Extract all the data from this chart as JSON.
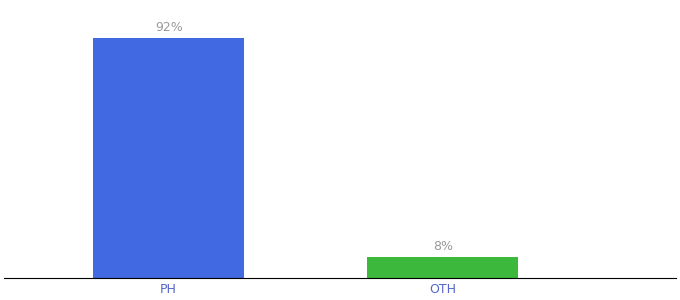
{
  "categories": [
    "PH",
    "OTH"
  ],
  "values": [
    92,
    8
  ],
  "bar_colors": [
    "#4169e1",
    "#3cb83c"
  ],
  "value_labels": [
    "92%",
    "8%"
  ],
  "background_color": "#ffffff",
  "label_color": "#999999",
  "label_fontsize": 9,
  "tick_label_color": "#5566cc",
  "tick_label_fontsize": 9,
  "ylim": [
    0,
    105
  ],
  "bar_width": 0.55,
  "x_positions": [
    1,
    2
  ],
  "xlim": [
    0.4,
    2.85
  ]
}
